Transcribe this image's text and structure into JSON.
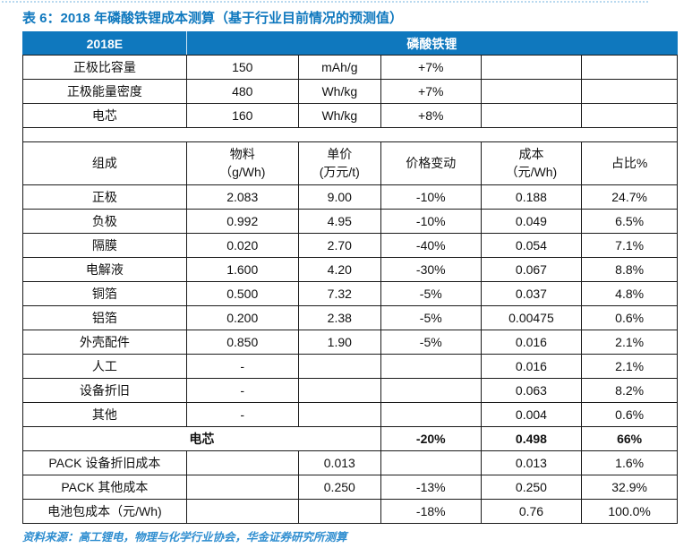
{
  "page": {
    "title": "表 6：2018 年磷酸铁锂成本测算（基于行业目前情况的预测值）",
    "source_note": "资料来源：高工锂电，物理与化学行业协会，华金证券研究所测算"
  },
  "colors": {
    "header_bg": "#0f78be",
    "title_text": "#0f78be",
    "source_text": "#2f8ed0",
    "table_border": "#1a1a1a",
    "top_rule": "#b9d9ef"
  },
  "table": {
    "top_header": {
      "left": "2018E",
      "right": "磷酸铁锂"
    },
    "spec_rows": [
      {
        "label": "正极比容量",
        "value": "150",
        "unit": "mAh/g",
        "change": "+7%",
        "cost": "",
        "share": ""
      },
      {
        "label": "正极能量密度",
        "value": "480",
        "unit": "Wh/kg",
        "change": "+7%",
        "cost": "",
        "share": ""
      },
      {
        "label": "电芯",
        "value": "160",
        "unit": "Wh/kg",
        "change": "+8%",
        "cost": "",
        "share": ""
      }
    ],
    "column_headers": [
      {
        "line1": "组成",
        "line2": ""
      },
      {
        "line1": "物料",
        "line2": "（g/Wh)"
      },
      {
        "line1": "单价",
        "line2": "(万元/t)"
      },
      {
        "line1": "价格变动",
        "line2": ""
      },
      {
        "line1": "成本",
        "line2": "（元/Wh)"
      },
      {
        "line1": "占比%",
        "line2": ""
      }
    ],
    "rows": [
      {
        "name": "正极",
        "material": "2.083",
        "price": "9.00",
        "change": "-10%",
        "cost": "0.188",
        "share": "24.7%",
        "bold": false,
        "merged": false
      },
      {
        "name": "负极",
        "material": "0.992",
        "price": "4.95",
        "change": "-10%",
        "cost": "0.049",
        "share": "6.5%",
        "bold": false,
        "merged": false
      },
      {
        "name": "隔膜",
        "material": "0.020",
        "price": "2.70",
        "change": "-40%",
        "cost": "0.054",
        "share": "7.1%",
        "bold": false,
        "merged": false
      },
      {
        "name": "电解液",
        "material": "1.600",
        "price": "4.20",
        "change": "-30%",
        "cost": "0.067",
        "share": "8.8%",
        "bold": false,
        "merged": false
      },
      {
        "name": "铜箔",
        "material": "0.500",
        "price": "7.32",
        "change": "-5%",
        "cost": "0.037",
        "share": "4.8%",
        "bold": false,
        "merged": false
      },
      {
        "name": "铝箔",
        "material": "0.200",
        "price": "2.38",
        "change": "-5%",
        "cost": "0.00475",
        "share": "0.6%",
        "bold": false,
        "merged": false
      },
      {
        "name": "外壳配件",
        "material": "0.850",
        "price": "1.90",
        "change": "-5%",
        "cost": "0.016",
        "share": "2.1%",
        "bold": false,
        "merged": false
      },
      {
        "name": "人工",
        "material": "-",
        "price": "",
        "change": "",
        "cost": "0.016",
        "share": "2.1%",
        "bold": false,
        "merged": false
      },
      {
        "name": "设备折旧",
        "material": "-",
        "price": "",
        "change": "",
        "cost": "0.063",
        "share": "8.2%",
        "bold": false,
        "merged": false
      },
      {
        "name": "其他",
        "material": "-",
        "price": "",
        "change": "",
        "cost": "0.004",
        "share": "0.6%",
        "bold": false,
        "merged": false
      },
      {
        "name": "电芯",
        "material": "",
        "price": "",
        "change": "-20%",
        "cost": "0.498",
        "share": "66%",
        "bold": true,
        "merged": true
      },
      {
        "name": "PACK 设备折旧成本",
        "material": "",
        "price": "0.013",
        "change": "",
        "cost": "0.013",
        "share": "1.6%",
        "bold": false,
        "merged": false
      },
      {
        "name": "PACK 其他成本",
        "material": "",
        "price": "0.250",
        "change": "-13%",
        "cost": "0.250",
        "share": "32.9%",
        "bold": false,
        "merged": false
      },
      {
        "name": "电池包成本（元/Wh)",
        "material": "",
        "price": "",
        "change": "-18%",
        "cost": "0.76",
        "share": "100.0%",
        "bold": false,
        "merged": false
      }
    ]
  }
}
